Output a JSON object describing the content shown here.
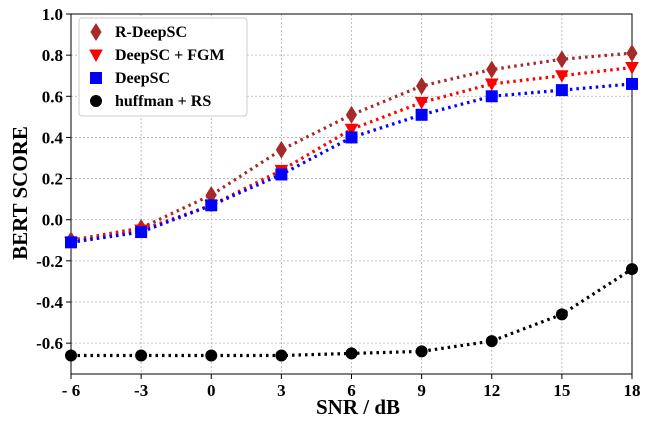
{
  "chart_data": {
    "type": "line",
    "xlabel": "SNR / dB",
    "ylabel": "BERT SCORE",
    "x": [
      -6,
      -3,
      0,
      3,
      6,
      9,
      12,
      15,
      18
    ],
    "x_tick_labels": [
      "- 6",
      "-3",
      "0",
      "3",
      "6",
      "9",
      "12",
      "15",
      "18"
    ],
    "ylim": [
      -0.75,
      1.0
    ],
    "y_ticks": [
      -0.6,
      -0.4,
      -0.2,
      0.0,
      0.2,
      0.4,
      0.6,
      0.8,
      1.0
    ],
    "y_tick_labels": [
      "-0.6",
      "-0.4",
      "-0.2",
      "0.0",
      "0.2",
      "0.4",
      "0.6",
      "0.8",
      "1.0"
    ],
    "grid": true,
    "legend_position": "top-left",
    "series": [
      {
        "name": "R-DeepSC",
        "color": "#a52a2a",
        "marker": "thin-diamond",
        "values": [
          -0.1,
          -0.04,
          0.12,
          0.34,
          0.51,
          0.65,
          0.73,
          0.78,
          0.81
        ]
      },
      {
        "name": "DeepSC + FGM",
        "color": "#ff0000",
        "marker": "triangle-down",
        "values": [
          -0.11,
          -0.05,
          0.07,
          0.24,
          0.44,
          0.57,
          0.66,
          0.7,
          0.74
        ]
      },
      {
        "name": "DeepSC",
        "color": "#0000ff",
        "marker": "square",
        "values": [
          -0.11,
          -0.06,
          0.07,
          0.22,
          0.4,
          0.51,
          0.6,
          0.63,
          0.66
        ]
      },
      {
        "name": "huffman + RS",
        "color": "#000000",
        "marker": "circle",
        "values": [
          -0.66,
          -0.66,
          -0.66,
          -0.66,
          -0.65,
          -0.64,
          -0.59,
          -0.46,
          -0.24
        ]
      }
    ]
  }
}
